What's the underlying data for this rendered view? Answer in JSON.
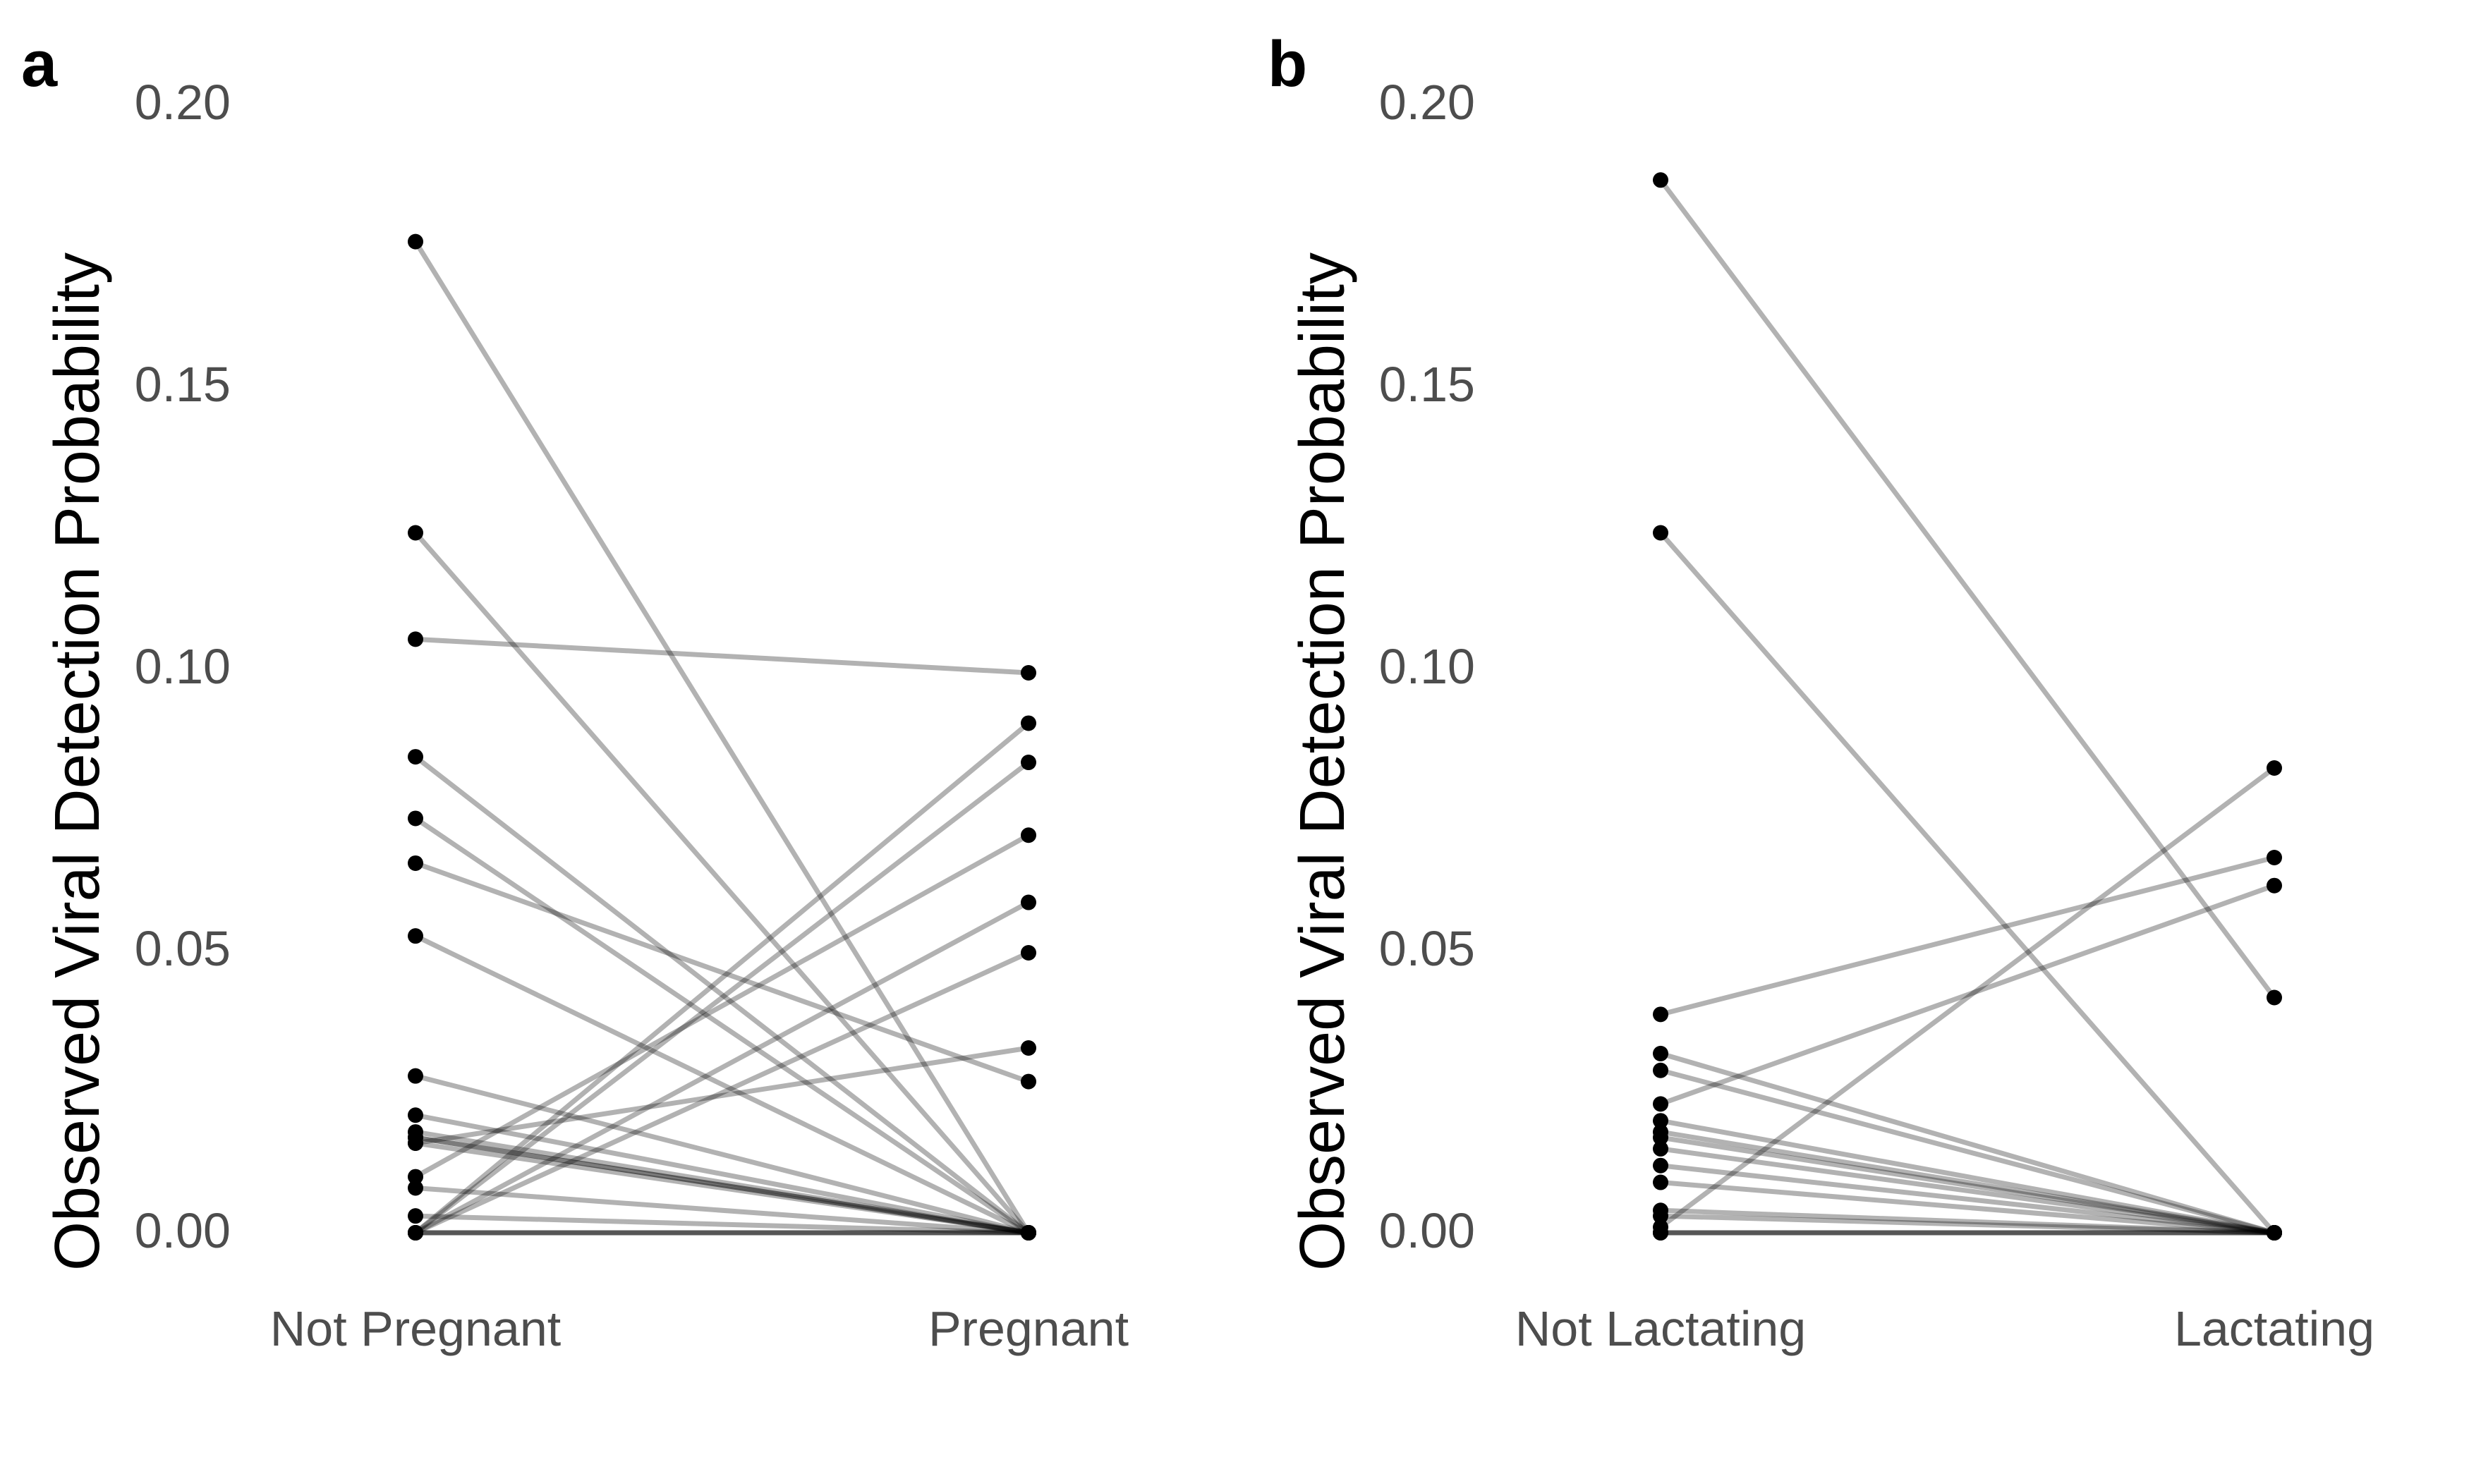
{
  "chart_data": [
    {
      "type": "line",
      "panel_label": "a",
      "ylabel": "Observed Viral Detection Probability",
      "xlabel": "",
      "categories": [
        "Not Pregnant",
        "Pregnant"
      ],
      "ylim": [
        0,
        0.2
      ],
      "yticks": [
        "0.00",
        "0.05",
        "0.10",
        "0.15",
        "0.20"
      ],
      "grid": false,
      "legend": "none",
      "pairs": [
        [
          0.177,
          0.0
        ],
        [
          0.125,
          0.0
        ],
        [
          0.106,
          0.1
        ],
        [
          0.085,
          0.0
        ],
        [
          0.074,
          0.0
        ],
        [
          0.066,
          0.027
        ],
        [
          0.053,
          0.0
        ],
        [
          0.028,
          0.0
        ],
        [
          0.021,
          0.0
        ],
        [
          0.018,
          0.0
        ],
        [
          0.017,
          0.0
        ],
        [
          0.016,
          0.0
        ],
        [
          0.017,
          0.0
        ],
        [
          0.01,
          0.071
        ],
        [
          0.016,
          0.033
        ],
        [
          0.008,
          0.0
        ],
        [
          0.003,
          0.0
        ],
        [
          0.0,
          0.091
        ],
        [
          0.0,
          0.084
        ],
        [
          0.0,
          0.059
        ],
        [
          0.0,
          0.05
        ],
        [
          0.0,
          0.0
        ],
        [
          0.0,
          0.0
        ],
        [
          0.0,
          0.0
        ]
      ]
    },
    {
      "type": "line",
      "panel_label": "b",
      "ylabel": "Observed Viral Detection Probability",
      "xlabel": "",
      "categories": [
        "Not Lactating",
        "Lactating"
      ],
      "ylim": [
        0,
        0.2
      ],
      "yticks": [
        "0.00",
        "0.05",
        "0.10",
        "0.15",
        "0.20"
      ],
      "grid": false,
      "legend": "none",
      "pairs": [
        [
          0.188,
          0.042
        ],
        [
          0.125,
          0.0
        ],
        [
          0.039,
          0.067
        ],
        [
          0.032,
          0.0
        ],
        [
          0.029,
          0.0
        ],
        [
          0.023,
          0.062
        ],
        [
          0.02,
          0.0
        ],
        [
          0.018,
          0.0
        ],
        [
          0.017,
          0.0
        ],
        [
          0.015,
          0.0
        ],
        [
          0.012,
          0.0
        ],
        [
          0.009,
          0.0
        ],
        [
          0.004,
          0.0
        ],
        [
          0.003,
          0.0
        ],
        [
          0.001,
          0.083
        ],
        [
          0.0,
          0.0
        ],
        [
          0.0,
          0.0
        ],
        [
          0.0,
          0.0
        ]
      ]
    }
  ]
}
